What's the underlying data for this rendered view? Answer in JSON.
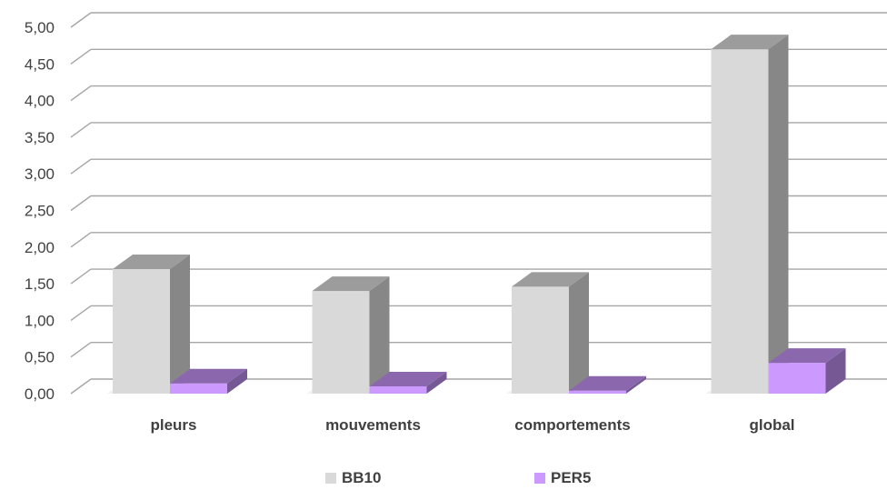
{
  "chart_data": {
    "type": "bar",
    "categories": [
      "pleurs",
      "mouvements",
      "comportements",
      "global"
    ],
    "series": [
      {
        "name": "BB10",
        "values": [
          1.7,
          1.4,
          1.46,
          4.7
        ],
        "color": "#d9d9d9"
      },
      {
        "name": "PER5",
        "values": [
          0.14,
          0.1,
          0.04,
          0.42
        ],
        "color": "#cc99ff"
      }
    ],
    "y_ticks": [
      "0,00",
      "0,50",
      "1,00",
      "1,50",
      "2,00",
      "2,50",
      "3,00",
      "3,50",
      "4,00",
      "4,50",
      "5,00"
    ],
    "ylim": [
      0,
      5
    ],
    "grid": true,
    "legend_position": "bottom",
    "style": "3d-clustered-column"
  },
  "legend": {
    "items": [
      "BB10",
      "PER5"
    ]
  }
}
